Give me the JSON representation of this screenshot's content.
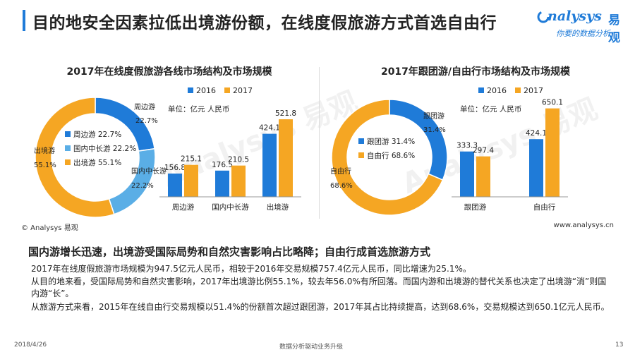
{
  "header": {
    "title": "目的地安全因素拉低出境游份额，在线度假旅游方式首选自由行",
    "logo_text": "nalysys",
    "logo_cn": "易观",
    "logo_slogan": "你要的数据分析"
  },
  "colors": {
    "blue": "#1f7bd8",
    "orange": "#f5a623",
    "accent": "#1f7bd8"
  },
  "chart_data": [
    {
      "type": "donut+bar",
      "title": "2017年在线度假旅游各线市场结构及市场规模",
      "pie": {
        "slices": [
          {
            "name": "周边游",
            "value": 22.7,
            "color": "#1f7bd8",
            "legend": "周边游 22.7%",
            "outer_label": "周边游",
            "outer_value": "22.7%"
          },
          {
            "name": "国内中长游",
            "value": 22.2,
            "color": "#5aaee6",
            "legend": "国内中长游 22.2%",
            "outer_label": "国内中长游",
            "outer_value": "22.2%"
          },
          {
            "name": "出境游",
            "value": 55.1,
            "color": "#f5a623",
            "legend": "出境游 55.1%",
            "outer_label": "出境游",
            "outer_value": "55.1%"
          }
        ]
      },
      "bar": {
        "unit": "单位：亿元 人民币",
        "categories": [
          "周边游",
          "国内中长游",
          "出境游"
        ],
        "series": [
          {
            "name": "2016",
            "color": "#1f7bd8",
            "values": [
              156.8,
              176.5,
              424.1
            ],
            "labels": [
              "156.8",
              "176.5",
              "424.1"
            ]
          },
          {
            "name": "2017",
            "color": "#f5a623",
            "values": [
              215.1,
              210.5,
              521.8
            ],
            "labels": [
              "215.1",
              "210.5",
              "521.8"
            ]
          }
        ],
        "ylim": [
          0,
          560
        ]
      }
    },
    {
      "type": "donut+bar",
      "title": "2017年跟团游/自由行市场结构及市场规模",
      "pie": {
        "slices": [
          {
            "name": "跟团游",
            "value": 31.4,
            "color": "#1f7bd8",
            "legend": "跟团游 31.4%",
            "outer_label": "跟团游",
            "outer_value": "31.4%"
          },
          {
            "name": "自由行",
            "value": 68.6,
            "color": "#f5a623",
            "legend": "自由行 68.6%",
            "outer_label": "自由行",
            "outer_value": "68.6%"
          }
        ]
      },
      "bar": {
        "unit": "单位：亿元 人民币",
        "categories": [
          "跟团游",
          "自由行"
        ],
        "series": [
          {
            "name": "2016",
            "color": "#1f7bd8",
            "values": [
              333.3,
              424.1
            ],
            "labels": [
              "333.3",
              "424.1"
            ]
          },
          {
            "name": "2017",
            "color": "#f5a623",
            "values": [
              297.4,
              650.1
            ],
            "labels": [
              "297.4",
              "650.1"
            ]
          }
        ],
        "ylim": [
          0,
          700
        ]
      }
    }
  ],
  "source": {
    "left": "© Analysys 易观",
    "right": "www.analysys.cn"
  },
  "summary": {
    "title": "国内游增长迅速，出境游受国际局势和自然灾害影响占比略降；自由行成首选旅游方式",
    "paragraphs": [
      "2017年在线度假旅游市场规模为947.5亿元人民币，相较于2016年交易规模757.4亿元人民币，同比增速为25.1%。",
      "从目的地来看，受国际局势和自然灾害影响，2017年出境游比例55.1%，较去年56.0%有所回落。而国内游和出境游的替代关系也决定了出境游“消”则国内游“长”。",
      "从旅游方式来看，2015年在线自由行交易规模以51.4%的份额首次超过跟团游，2017年其占比持续提高，达到68.6%，交易规模达到650.1亿元人民币。"
    ]
  },
  "footer": {
    "date": "2018/4/26",
    "center": "数据分析驱动业务升级",
    "page": "13"
  }
}
